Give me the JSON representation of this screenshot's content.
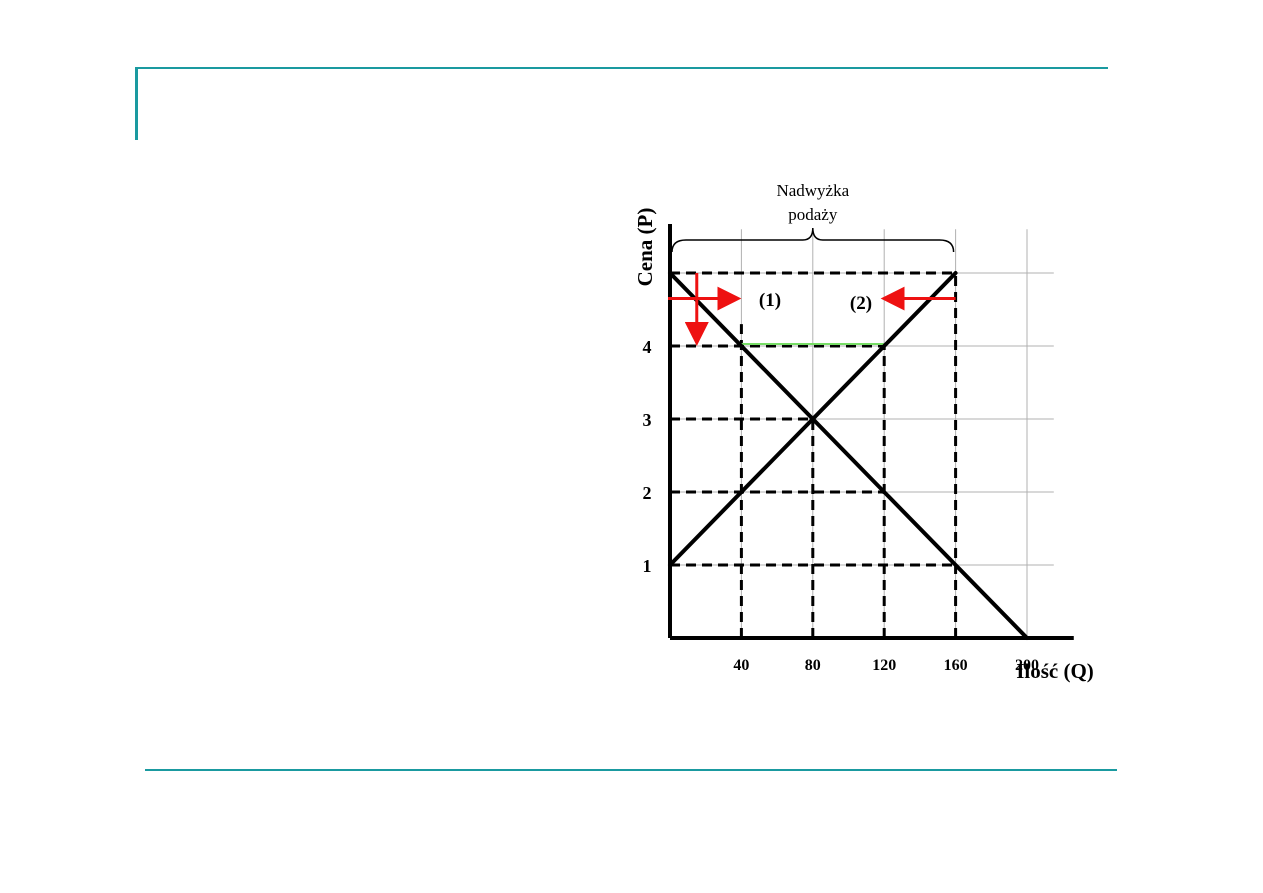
{
  "chart_data": {
    "type": "line",
    "title": "",
    "xlabel": "Ilość (Q)",
    "ylabel": "Cena (P)",
    "xlim": [
      0,
      215
    ],
    "ylim": [
      0,
      5.3
    ],
    "x_ticks": [
      40,
      80,
      120,
      160,
      200
    ],
    "x_tick_labels": [
      "40",
      "80",
      "120",
      "160",
      "200"
    ],
    "y_ticks": [
      1,
      2,
      3,
      4
    ],
    "y_tick_labels": [
      "1",
      "2",
      "3",
      "4"
    ],
    "grid": true,
    "series": [
      {
        "name": "",
        "role": "demand",
        "points": [
          [
            0,
            5
          ],
          [
            200,
            0
          ]
        ]
      },
      {
        "name": "",
        "role": "supply",
        "points": [
          [
            0,
            1
          ],
          [
            160,
            5
          ]
        ]
      }
    ],
    "reference_lines": [
      {
        "orientation": "horizontal",
        "y": 5,
        "x_from": 0,
        "x_to": 160
      },
      {
        "orientation": "horizontal",
        "y": 4,
        "x_from": 0,
        "x_to": 120
      },
      {
        "orientation": "horizontal",
        "y": 3,
        "x_from": 0,
        "x_to": 80
      },
      {
        "orientation": "horizontal",
        "y": 2,
        "x_from": 0,
        "x_to": 120
      },
      {
        "orientation": "horizontal",
        "y": 1,
        "x_from": 0,
        "x_to": 160
      },
      {
        "orientation": "vertical",
        "x": 40,
        "y_from": 0,
        "y_to": 4.3
      },
      {
        "orientation": "vertical",
        "x": 80,
        "y_from": 0,
        "y_to": 3
      },
      {
        "orientation": "vertical",
        "x": 120,
        "y_from": 0,
        "y_to": 4
      },
      {
        "orientation": "vertical",
        "x": 160,
        "y_from": 0,
        "y_to": 5
      }
    ],
    "highlight_segment": {
      "y": 4,
      "x_from": 40,
      "x_to": 120,
      "color": "#77dd66"
    },
    "annotations": [
      {
        "text_lines": [
          "Nadwyżka",
          "podaży"
        ],
        "brace_from_x": 0,
        "brace_to_x": 160
      },
      {
        "text": "(1)",
        "arrow_y": 4.65,
        "arrow_from_x": 0,
        "arrow_to_x": 40,
        "direction": "right",
        "vertical_arrow_x": 15,
        "vertical_from_y": 5,
        "vertical_to_y": 4
      },
      {
        "text": "(2)",
        "arrow_y": 4.65,
        "arrow_from_x": 160,
        "arrow_to_x": 118,
        "direction": "left"
      }
    ],
    "colors": {
      "curve": "#000000",
      "grid": "#b0b0b0",
      "arrow": "#ee1111"
    }
  }
}
